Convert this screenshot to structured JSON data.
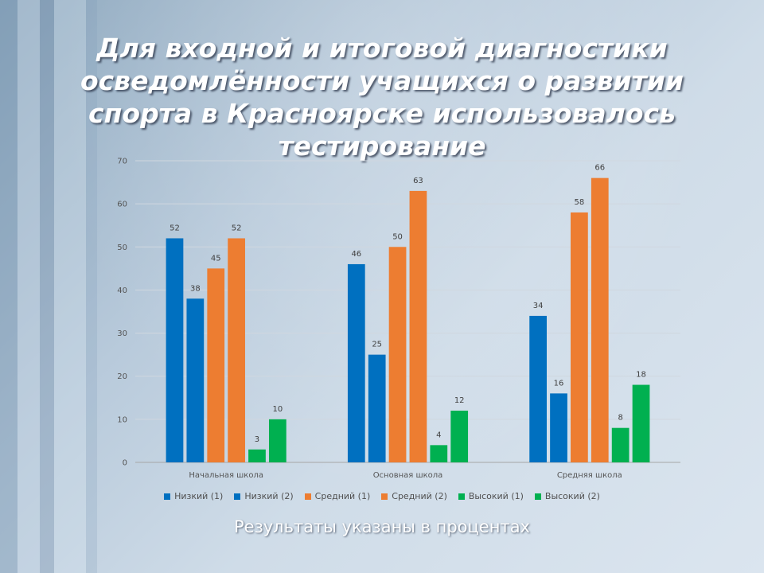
{
  "slide": {
    "title": "Для входной и итоговой диагностики осведомлённости учащихся о развитии спорта в Красноярске использовалось тестирование",
    "note": "Результаты указаны в процентах"
  },
  "chart_data": {
    "type": "bar",
    "categories": [
      "Начальная школа",
      "Основная школа",
      "Средняя школа"
    ],
    "series": [
      {
        "name": "Низкий (1)",
        "color": "#0070C0",
        "values": [
          52,
          46,
          34
        ]
      },
      {
        "name": "Низкий (2)",
        "color": "#0070C0",
        "values": [
          38,
          25,
          16
        ]
      },
      {
        "name": "Средний (1)",
        "color": "#ED7D31",
        "values": [
          45,
          50,
          58
        ]
      },
      {
        "name": "Средний (2)",
        "color": "#ED7D31",
        "values": [
          52,
          63,
          66
        ]
      },
      {
        "name": "Высокий (1)",
        "color": "#00B050",
        "values": [
          3,
          4,
          8
        ]
      },
      {
        "name": "Высокий (2)",
        "color": "#00B050",
        "values": [
          10,
          12,
          18
        ]
      }
    ],
    "ylim": [
      0,
      70
    ],
    "yticks": [
      0,
      10,
      20,
      30,
      40,
      50,
      60,
      70
    ],
    "grid": true,
    "legend_position": "bottom",
    "data_labels": true
  }
}
